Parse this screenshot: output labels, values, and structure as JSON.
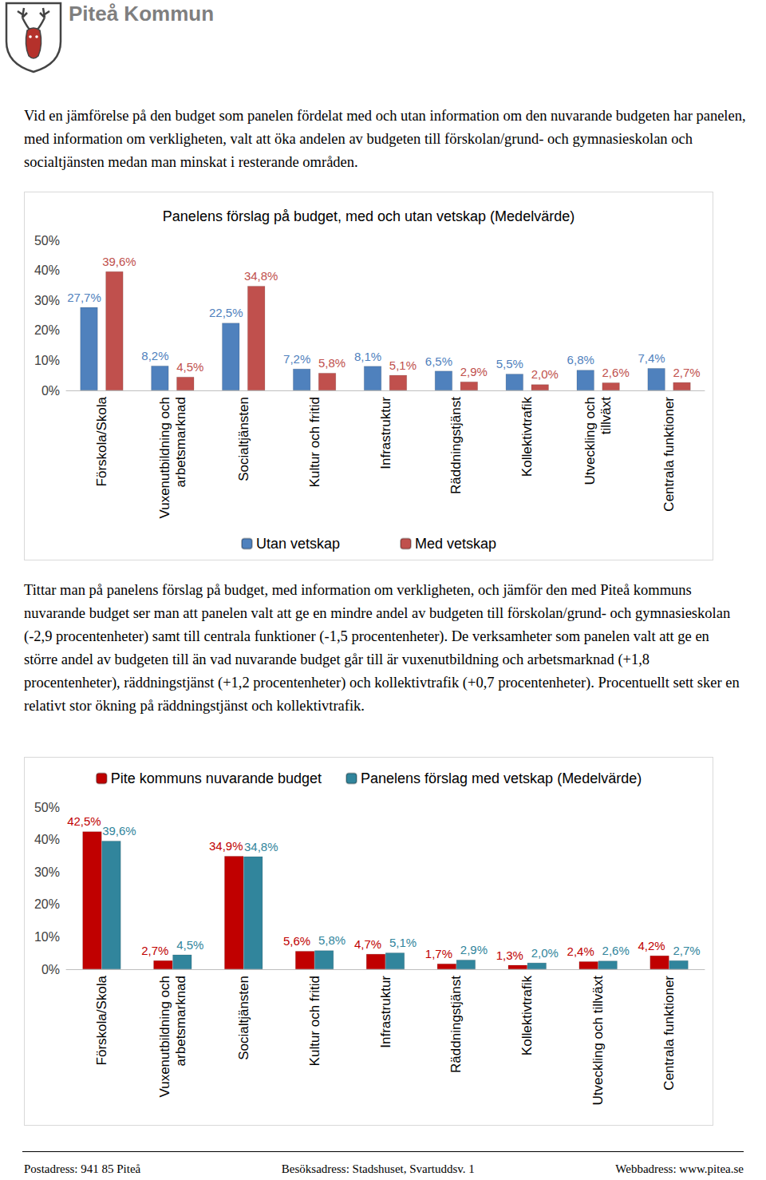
{
  "header": {
    "title": "Piteå Kommun"
  },
  "paragraphs": [
    "Vid en jämförelse på den budget som panelen fördelat med och utan information om den nuvarande budgeten har panelen, med information om verkligheten, valt att öka andelen av budgeten till förskolan/grund- och gymnasieskolan och socialtjänsten medan man minskat i resterande områden.",
    "Tittar man på panelens förslag på budget, med information om verkligheten, och jämför den med Piteå kommuns nuvarande budget ser man att panelen valt att ge en mindre andel av budgeten till förskolan/grund- och gymnasieskolan (-2,9 procentenheter) samt till centrala funktioner (-1,5 procentenheter). De verksamheter som panelen valt att ge en större andel av budgeten till än vad nuvarande budget går till är vuxenutbildning och arbetsmarknad (+1,8 procentenheter), räddningstjänst (+1,2 procentenheter) och kollektivtrafik (+0,7 procentenheter). Procentuellt sett sker en relativt stor ökning på räddningstjänst och kollektivtrafik."
  ],
  "chart_data": [
    {
      "type": "bar",
      "title": "Panelens förslag på budget, med och utan vetskap (Medelvärde)",
      "categories": [
        "Förskola/Skola",
        "Vuxenutbildning och\narbetsmarknad",
        "Socialtjänsten",
        "Kultur och fritid",
        "Infrastruktur",
        "Räddningstjänst",
        "Kollektivtrafik",
        "Utveckling och\ntillväxt",
        "Centrala funktioner"
      ],
      "series": [
        {
          "name": "Utan vetskap",
          "color": "#4f81bd",
          "values": [
            27.7,
            8.2,
            22.5,
            7.2,
            8.1,
            6.5,
            5.5,
            6.8,
            7.4
          ],
          "value_labels": [
            "27,7%",
            "8,2%",
            "22,5%",
            "7,2%",
            "8,1%",
            "6,5%",
            "5,5%",
            "6,8%",
            "7,4%"
          ]
        },
        {
          "name": "Med vetskap",
          "color": "#c0504d",
          "values": [
            39.6,
            4.5,
            34.8,
            5.8,
            5.1,
            2.9,
            2.0,
            2.6,
            2.7
          ],
          "value_labels": [
            "39,6%",
            "4,5%",
            "34,8%",
            "5,8%",
            "5,1%",
            "2,9%",
            "2,0%",
            "2,6%",
            "2,7%"
          ]
        }
      ],
      "ylim": [
        0,
        50
      ],
      "yticks": [
        {
          "value": 0,
          "label": "0%"
        },
        {
          "value": 10,
          "label": "10%"
        },
        {
          "value": 20,
          "label": "20%"
        },
        {
          "value": 30,
          "label": "30%"
        },
        {
          "value": 40,
          "label": "40%"
        },
        {
          "value": 50,
          "label": "50%"
        }
      ],
      "grid": false,
      "legend": "bottom",
      "data_labels": true
    },
    {
      "type": "bar",
      "categories": [
        "Förskola/Skola",
        "Vuxenutbildning och\narbetsmarknad",
        "Socialtjänsten",
        "Kultur och fritid",
        "Infrastruktur",
        "Räddningstjänst",
        "Kollektivtrafik",
        "Utveckling och tillväxt",
        "Centrala funktioner"
      ],
      "series": [
        {
          "name": "Pite kommuns nuvarande budget",
          "color": "#c00000",
          "values": [
            42.5,
            2.7,
            34.9,
            5.6,
            4.7,
            1.7,
            1.3,
            2.4,
            4.2
          ],
          "value_labels": [
            "42,5%",
            "2,7%",
            "34,9%",
            "5,6%",
            "4,7%",
            "1,7%",
            "1,3%",
            "2,4%",
            "4,2%"
          ]
        },
        {
          "name": "Panelens förslag med vetskap (Medelvärde)",
          "color": "#31859c",
          "values": [
            39.6,
            4.5,
            34.8,
            5.8,
            5.1,
            2.9,
            2.0,
            2.6,
            2.7
          ],
          "value_labels": [
            "39,6%",
            "4,5%",
            "34,8%",
            "5,8%",
            "5,1%",
            "2,9%",
            "2,0%",
            "2,6%",
            "2,7%"
          ]
        }
      ],
      "ylim": [
        0,
        50
      ],
      "yticks": [
        {
          "value": 0,
          "label": "0%"
        },
        {
          "value": 10,
          "label": "10%"
        },
        {
          "value": 20,
          "label": "20%"
        },
        {
          "value": 30,
          "label": "30%"
        },
        {
          "value": 40,
          "label": "40%"
        },
        {
          "value": 50,
          "label": "50%"
        }
      ],
      "grid": false,
      "legend": "top",
      "data_labels": true
    }
  ],
  "footer": [
    "Postadress: 941 85 Piteå",
    "Besöksadress: Stadshuset, Svartuddsv. 1",
    "Webbadress: www.pitea.se"
  ]
}
